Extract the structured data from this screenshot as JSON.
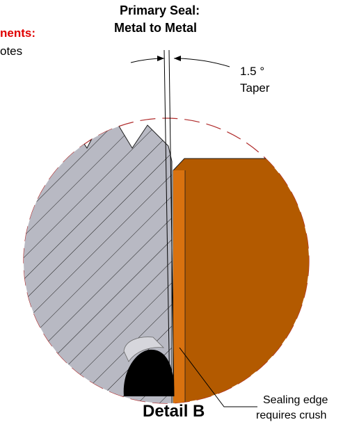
{
  "labels": {
    "comments_heading": "nents:",
    "comments_text": "otes",
    "primary_seal_line1": "Primary Seal:",
    "primary_seal_line2": "Metal to Metal",
    "taper_value": "1.5 °",
    "taper_word": "Taper",
    "sealing_edge_line1": "Sealing edge",
    "sealing_edge_line2": "requires crush",
    "detail_title": "Detail B"
  },
  "colors": {
    "accent_red": "#e00000",
    "steel_gray": "#b8b9c3",
    "copper_orange": "#b35a00",
    "copper_light": "#d9720f",
    "seal_black": "#000000",
    "outline_red": "#b02a2a"
  }
}
